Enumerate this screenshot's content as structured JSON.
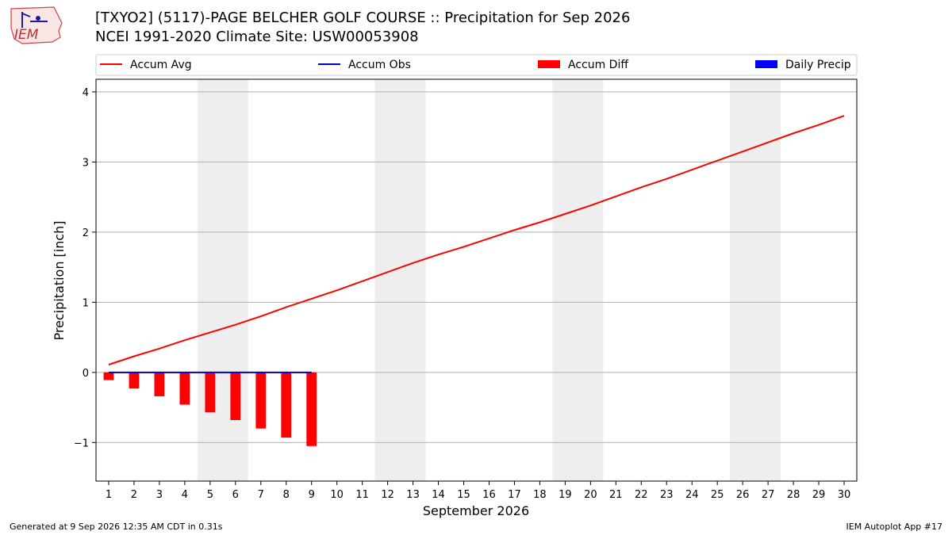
{
  "header": {
    "title_line1": "[TXYO2] (5117)-PAGE BELCHER GOLF COURSE :: Precipitation for Sep 2026",
    "title_line2": "NCEI 1991-2020 Climate Site: USW00053908",
    "logo_text": "IEM"
  },
  "footer": {
    "generated": "Generated at 9 Sep 2026 12:35 AM CDT in 0.31s",
    "app": "IEM Autoplot App #17"
  },
  "colors": {
    "avg": "#ff0000",
    "obs": "#0000cc",
    "diff": "#ff0000",
    "daily": "#0000ff",
    "weekend": "#eeeeee",
    "grid": "#b0b0b0"
  },
  "chart_data": {
    "type": "bar",
    "xlabel": "September 2026",
    "ylabel": "Precipitation [inch]",
    "xlim": [
      0.5,
      30.5
    ],
    "ylim": [
      -1.55,
      4.18
    ],
    "yticks": [
      -1,
      0,
      1,
      2,
      3,
      4
    ],
    "ytick_labels": [
      "−1",
      "0",
      "1",
      "2",
      "3",
      "4"
    ],
    "grid": "horizontal",
    "legend_position": "top",
    "legend": [
      {
        "label": "Accum Avg",
        "kind": "line",
        "color": "#ff0000"
      },
      {
        "label": "Accum Obs",
        "kind": "line",
        "color": "#0000cc"
      },
      {
        "label": "Accum Diff",
        "kind": "patch",
        "color": "#ff0000"
      },
      {
        "label": "Daily Precip",
        "kind": "patch",
        "color": "#0000ff"
      }
    ],
    "weekends": [
      [
        5,
        6
      ],
      [
        12,
        13
      ],
      [
        19,
        20
      ],
      [
        26,
        27
      ]
    ],
    "days": [
      1,
      2,
      3,
      4,
      5,
      6,
      7,
      8,
      9,
      10,
      11,
      12,
      13,
      14,
      15,
      16,
      17,
      18,
      19,
      20,
      21,
      22,
      23,
      24,
      25,
      26,
      27,
      28,
      29,
      30
    ],
    "series": [
      {
        "name": "Accum Avg",
        "type": "line",
        "x": [
          1,
          2,
          3,
          4,
          5,
          6,
          7,
          8,
          9,
          10,
          11,
          12,
          13,
          14,
          15,
          16,
          17,
          18,
          19,
          20,
          21,
          22,
          23,
          24,
          25,
          26,
          27,
          28,
          29,
          30
        ],
        "values": [
          0.11,
          0.23,
          0.34,
          0.46,
          0.57,
          0.68,
          0.8,
          0.93,
          1.05,
          1.17,
          1.3,
          1.43,
          1.56,
          1.68,
          1.79,
          1.91,
          2.03,
          2.14,
          2.26,
          2.38,
          2.51,
          2.64,
          2.76,
          2.89,
          3.02,
          3.15,
          3.28,
          3.41,
          3.53,
          3.66
        ]
      },
      {
        "name": "Accum Obs",
        "type": "line",
        "x": [
          1,
          2,
          3,
          4,
          5,
          6,
          7,
          8,
          9
        ],
        "values": [
          0,
          0,
          0,
          0,
          0,
          0,
          0,
          0,
          0
        ]
      },
      {
        "name": "Accum Diff",
        "type": "bar",
        "x": [
          1,
          2,
          3,
          4,
          5,
          6,
          7,
          8,
          9
        ],
        "values": [
          -0.11,
          -0.23,
          -0.34,
          -0.46,
          -0.57,
          -0.68,
          -0.8,
          -0.93,
          -1.05
        ]
      },
      {
        "name": "Daily Precip",
        "type": "bar",
        "x": [
          1,
          2,
          3,
          4,
          5,
          6,
          7,
          8,
          9
        ],
        "values": [
          0,
          0,
          0,
          0,
          0,
          0,
          0,
          0,
          0
        ]
      }
    ]
  }
}
